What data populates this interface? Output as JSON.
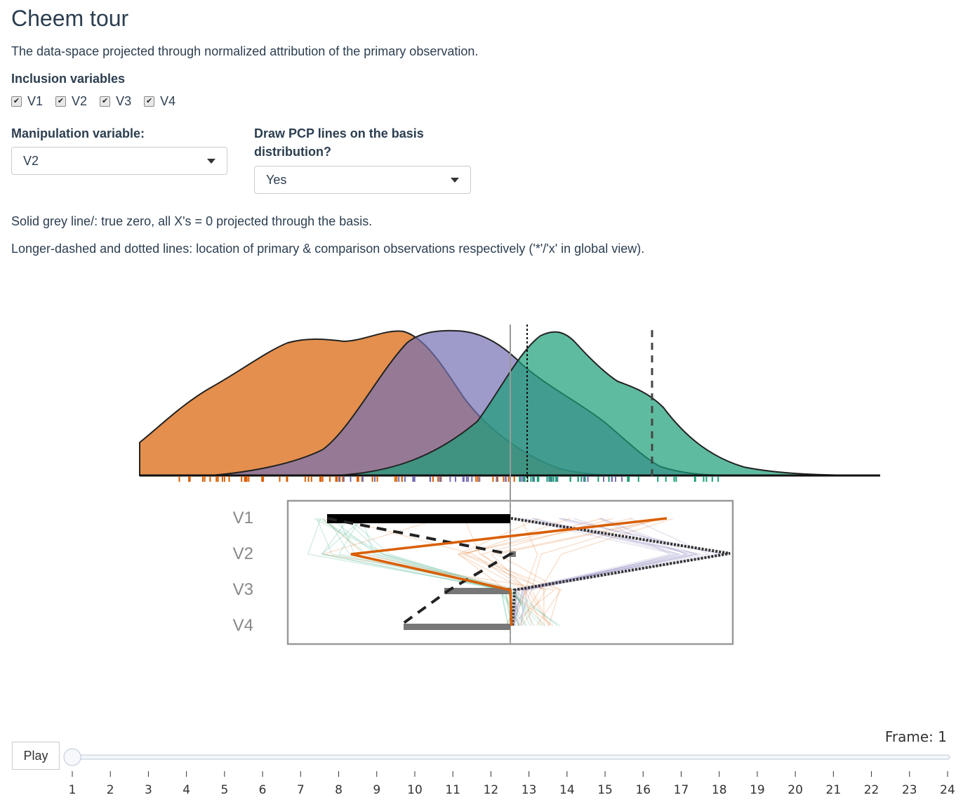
{
  "header": {
    "title": "Cheem tour",
    "description": "The data-space projected through normalized attribution of the primary observation."
  },
  "inclusion": {
    "label": "Inclusion variables",
    "vars": [
      "V1",
      "V2",
      "V3",
      "V4"
    ]
  },
  "manip": {
    "label": "Manipulation variable:",
    "value": "V2"
  },
  "pcp": {
    "label_line1": "Draw PCP lines on the basis",
    "label_line2": "distribution?",
    "value": "Yes"
  },
  "notes": {
    "line1": "Solid grey line/: true zero, all X's = 0 projected through the basis.",
    "line2": "Longer-dashed and dotted lines: location of primary & comparison observations respectively ('*'/'x' in global view)."
  },
  "colors": {
    "orange": "#d95f02",
    "purple": "#7570b3",
    "green": "#1b9e77"
  },
  "basis_labels": [
    "V1",
    "V2",
    "V3",
    "V4"
  ],
  "animation": {
    "play_label": "Play",
    "frame_prefix": "Frame: ",
    "frame_value": "1",
    "ticks": [
      "1",
      "2",
      "3",
      "4",
      "5",
      "6",
      "7",
      "8",
      "9",
      "10",
      "11",
      "12",
      "13",
      "14",
      "15",
      "16",
      "17",
      "18",
      "19",
      "20",
      "21",
      "22",
      "23",
      "24"
    ]
  }
}
